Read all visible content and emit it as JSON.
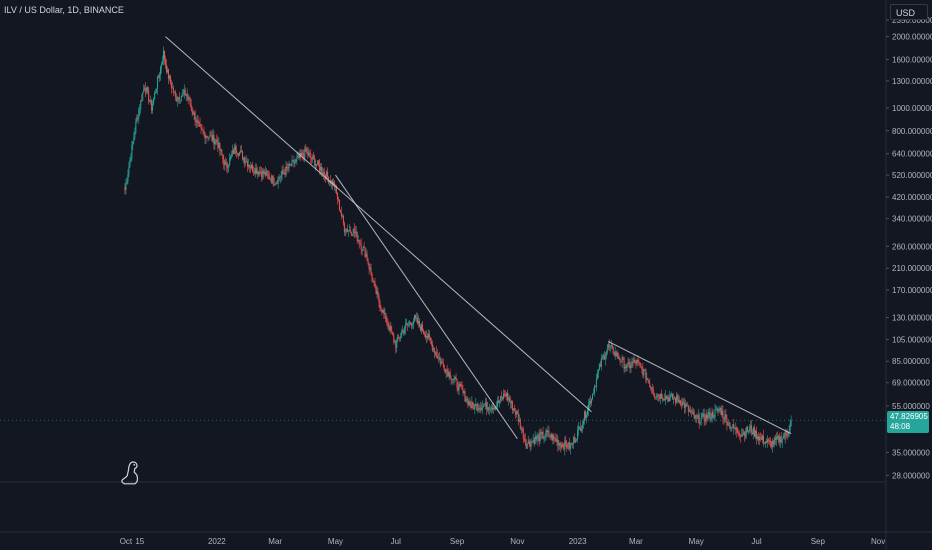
{
  "header": {
    "symbol_text": "ILV / US Dollar, 1D, BINANCE"
  },
  "currency_button": {
    "label": "USD"
  },
  "last_price": {
    "value": "47.826905",
    "countdown": "48:08"
  },
  "colors": {
    "background": "#131722",
    "up": "#26a69a",
    "down": "#ef5350",
    "trendline": "#d1d4dc",
    "grid": "#2a2e39",
    "text": "#b2b5be"
  },
  "icons": {
    "logo": "dinosaur-icon"
  },
  "chart_data": {
    "type": "candlestick",
    "title": "",
    "xlabel": "",
    "ylabel": "",
    "y_scale": "log",
    "ylim": [
      25,
      2350
    ],
    "xlim": [
      "2021-09-25",
      "2023-11-10"
    ],
    "y_ticks": [
      {
        "value": 2350,
        "label": "2350.000000"
      },
      {
        "value": 2000,
        "label": "2000.000000"
      },
      {
        "value": 1600,
        "label": "1600.000000"
      },
      {
        "value": 1300,
        "label": "1300.000000"
      },
      {
        "value": 1000,
        "label": "1000.000000"
      },
      {
        "value": 800,
        "label": "800.000000"
      },
      {
        "value": 640,
        "label": "640.000000"
      },
      {
        "value": 520,
        "label": "520.000000"
      },
      {
        "value": 420,
        "label": "420.000000"
      },
      {
        "value": 340,
        "label": "340.000000"
      },
      {
        "value": 260,
        "label": "260.000000"
      },
      {
        "value": 210,
        "label": "210.000000"
      },
      {
        "value": 170,
        "label": "170.000000"
      },
      {
        "value": 130,
        "label": "130.000000"
      },
      {
        "value": 105,
        "label": "105.000000"
      },
      {
        "value": 85,
        "label": "85.000000"
      },
      {
        "value": 69,
        "label": "69.000000"
      },
      {
        "value": 55,
        "label": "55.000000"
      },
      {
        "value": 35,
        "label": "35.000000"
      },
      {
        "value": 28,
        "label": "28.000000"
      }
    ],
    "x_ticks": [
      {
        "date": "2021-10-01",
        "label": "Oct"
      },
      {
        "date": "2021-10-15",
        "label": "15"
      },
      {
        "date": "2022-01-01",
        "label": "2022"
      },
      {
        "date": "2022-03-01",
        "label": "Mar"
      },
      {
        "date": "2022-05-01",
        "label": "May"
      },
      {
        "date": "2022-07-01",
        "label": "Jul"
      },
      {
        "date": "2022-09-01",
        "label": "Sep"
      },
      {
        "date": "2022-11-01",
        "label": "Nov"
      },
      {
        "date": "2023-01-01",
        "label": "2023"
      },
      {
        "date": "2023-03-01",
        "label": "Mar"
      },
      {
        "date": "2023-05-01",
        "label": "May"
      },
      {
        "date": "2023-07-01",
        "label": "Jul"
      },
      {
        "date": "2023-09-01",
        "label": "Sep"
      },
      {
        "date": "2023-11-01",
        "label": "Nov"
      }
    ],
    "price_path": [
      [
        "2021-09-30",
        450
      ],
      [
        "2021-10-05",
        600
      ],
      [
        "2021-10-12",
        900
      ],
      [
        "2021-10-20",
        1250
      ],
      [
        "2021-10-27",
        1000
      ],
      [
        "2021-11-03",
        1350
      ],
      [
        "2021-11-08",
        1700
      ],
      [
        "2021-11-12",
        1400
      ],
      [
        "2021-11-20",
        1100
      ],
      [
        "2021-12-01",
        1150
      ],
      [
        "2021-12-15",
        800
      ],
      [
        "2022-01-01",
        720
      ],
      [
        "2022-01-10",
        560
      ],
      [
        "2022-01-20",
        680
      ],
      [
        "2022-02-05",
        560
      ],
      [
        "2022-02-20",
        520
      ],
      [
        "2022-03-01",
        490
      ],
      [
        "2022-03-15",
        560
      ],
      [
        "2022-04-01",
        650
      ],
      [
        "2022-04-15",
        560
      ],
      [
        "2022-04-30",
        470
      ],
      [
        "2022-05-10",
        310
      ],
      [
        "2022-05-20",
        300
      ],
      [
        "2022-06-01",
        240
      ],
      [
        "2022-06-10",
        170
      ],
      [
        "2022-06-20",
        130
      ],
      [
        "2022-07-01",
        100
      ],
      [
        "2022-07-10",
        118
      ],
      [
        "2022-07-20",
        128
      ],
      [
        "2022-08-01",
        110
      ],
      [
        "2022-08-15",
        85
      ],
      [
        "2022-09-01",
        68
      ],
      [
        "2022-09-15",
        55
      ],
      [
        "2022-10-01",
        55
      ],
      [
        "2022-10-10",
        55
      ],
      [
        "2022-10-20",
        62
      ],
      [
        "2022-11-01",
        50
      ],
      [
        "2022-11-10",
        38
      ],
      [
        "2022-11-20",
        40
      ],
      [
        "2022-12-01",
        42
      ],
      [
        "2022-12-15",
        38
      ],
      [
        "2022-12-25",
        37
      ],
      [
        "2023-01-05",
        46
      ],
      [
        "2023-01-15",
        60
      ],
      [
        "2023-01-25",
        85
      ],
      [
        "2023-02-01",
        98
      ],
      [
        "2023-02-10",
        90
      ],
      [
        "2023-02-20",
        80
      ],
      [
        "2023-03-01",
        85
      ],
      [
        "2023-03-10",
        75
      ],
      [
        "2023-03-20",
        62
      ],
      [
        "2023-04-01",
        60
      ],
      [
        "2023-04-15",
        58
      ],
      [
        "2023-05-01",
        48
      ],
      [
        "2023-05-15",
        50
      ],
      [
        "2023-05-25",
        53
      ],
      [
        "2023-06-05",
        45
      ],
      [
        "2023-06-15",
        42
      ],
      [
        "2023-06-25",
        44
      ],
      [
        "2023-07-05",
        40
      ],
      [
        "2023-07-15",
        38
      ],
      [
        "2023-07-25",
        40
      ],
      [
        "2023-08-01",
        42
      ],
      [
        "2023-08-05",
        47.83
      ]
    ],
    "trendlines": [
      {
        "from": [
          "2021-11-10",
          2000
        ],
        "to": [
          "2023-01-15",
          52
        ]
      },
      {
        "from": [
          "2022-05-01",
          520
        ],
        "to": [
          "2022-11-01",
          40
        ]
      },
      {
        "from": [
          "2023-02-01",
          103
        ],
        "to": [
          "2023-08-05",
          42
        ]
      }
    ],
    "last_value": 47.826905
  }
}
